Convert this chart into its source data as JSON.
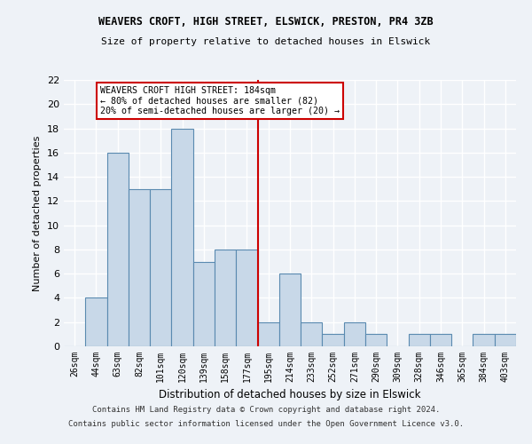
{
  "title1": "WEAVERS CROFT, HIGH STREET, ELSWICK, PRESTON, PR4 3ZB",
  "title2": "Size of property relative to detached houses in Elswick",
  "xlabel": "Distribution of detached houses by size in Elswick",
  "ylabel": "Number of detached properties",
  "categories": [
    "26sqm",
    "44sqm",
    "63sqm",
    "82sqm",
    "101sqm",
    "120sqm",
    "139sqm",
    "158sqm",
    "177sqm",
    "195sqm",
    "214sqm",
    "233sqm",
    "252sqm",
    "271sqm",
    "290sqm",
    "309sqm",
    "328sqm",
    "346sqm",
    "365sqm",
    "384sqm",
    "403sqm"
  ],
  "values": [
    0,
    4,
    16,
    13,
    13,
    18,
    7,
    8,
    8,
    2,
    6,
    2,
    1,
    2,
    1,
    0,
    1,
    1,
    0,
    1,
    1
  ],
  "bar_color": "#c8d8e8",
  "bar_edge_color": "#5a8ab0",
  "vline_x": 8.5,
  "vline_color": "#cc0000",
  "annotation_title": "WEAVERS CROFT HIGH STREET: 184sqm",
  "annotation_line1": "← 80% of detached houses are smaller (82)",
  "annotation_line2": "20% of semi-detached houses are larger (20) →",
  "annotation_box_color": "#ffffff",
  "annotation_box_edge": "#cc0000",
  "ylim": [
    0,
    22
  ],
  "yticks": [
    0,
    2,
    4,
    6,
    8,
    10,
    12,
    14,
    16,
    18,
    20,
    22
  ],
  "footer1": "Contains HM Land Registry data © Crown copyright and database right 2024.",
  "footer2": "Contains public sector information licensed under the Open Government Licence v3.0.",
  "bg_color": "#eef2f7",
  "grid_color": "#ffffff"
}
